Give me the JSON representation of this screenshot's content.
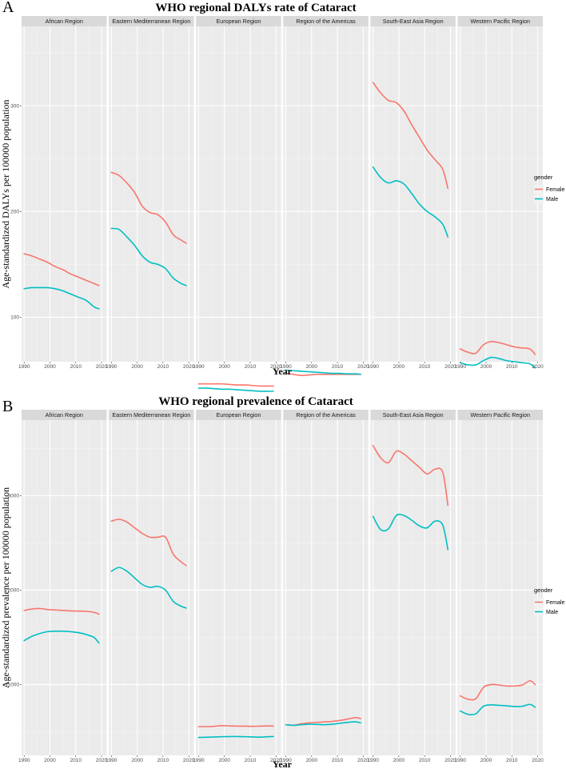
{
  "chart_data": [
    {
      "type": "line",
      "panel_label": "A",
      "title": "WHO regional DALYs rate of Cataract",
      "xlabel": "Year",
      "ylabel": "Age-standardized DALYs per 100000 population",
      "xlim": [
        1989,
        2022
      ],
      "ylim": [
        58,
        375
      ],
      "x_ticks": [
        1990,
        2000,
        2010,
        2020
      ],
      "y_ticks": [
        100,
        200,
        300
      ],
      "legend": {
        "title": "gender",
        "entries": [
          "Female",
          "Male"
        ],
        "colors": [
          "#F8766D",
          "#00BFC4"
        ]
      },
      "years": [
        1990,
        1993,
        1996,
        1999,
        2002,
        2005,
        2008,
        2011,
        2014,
        2017,
        2019
      ],
      "facets": [
        {
          "name": "African Region",
          "series": [
            {
              "name": "Female",
              "values": [
                160,
                158,
                155,
                152,
                148,
                145,
                141,
                138,
                135,
                132,
                130
              ]
            },
            {
              "name": "Male",
              "values": [
                127,
                128,
                128,
                128,
                127,
                125,
                122,
                119,
                116,
                110,
                108
              ]
            }
          ]
        },
        {
          "name": "Eastern Mediterranean Region",
          "series": [
            {
              "name": "Female",
              "values": [
                237,
                234,
                227,
                218,
                205,
                199,
                197,
                190,
                178,
                173,
                170
              ]
            },
            {
              "name": "Male",
              "values": [
                184,
                183,
                176,
                168,
                158,
                152,
                150,
                146,
                137,
                132,
                130
              ]
            }
          ]
        },
        {
          "name": "European Region",
          "series": [
            {
              "name": "Female",
              "values": [
                37,
                37,
                37,
                37,
                36.5,
                36,
                36,
                35.5,
                35,
                35,
                35
              ]
            },
            {
              "name": "Male",
              "values": [
                33,
                33,
                32.5,
                32,
                32,
                31.5,
                31,
                30.5,
                30,
                30,
                30
              ]
            }
          ]
        },
        {
          "name": "Region of the Americas",
          "series": [
            {
              "name": "Female",
              "values": [
                47,
                46,
                45,
                45.5,
                46,
                46,
                46,
                46,
                46,
                46,
                46
              ]
            },
            {
              "name": "Male",
              "values": [
                50,
                49.5,
                49,
                48.5,
                48,
                47.5,
                47,
                47,
                46.5,
                46.5,
                46
              ]
            }
          ]
        },
        {
          "name": "South-East Asia Region",
          "series": [
            {
              "name": "Female",
              "values": [
                322,
                312,
                305,
                303,
                295,
                282,
                270,
                258,
                249,
                240,
                222
              ]
            },
            {
              "name": "Male",
              "values": [
                242,
                232,
                227,
                229,
                226,
                217,
                207,
                200,
                195,
                188,
                176
              ]
            }
          ]
        },
        {
          "name": "Western Pacific Region",
          "series": [
            {
              "name": "Female",
              "values": [
                70,
                67,
                66,
                74,
                77,
                76,
                74,
                72,
                71,
                70,
                65
              ]
            },
            {
              "name": "Male",
              "values": [
                57,
                55,
                55,
                59,
                62,
                61,
                59,
                58,
                57,
                56,
                52
              ]
            }
          ]
        }
      ]
    },
    {
      "type": "line",
      "panel_label": "B",
      "title": "WHO regional prevalence of Cataract",
      "xlabel": "Year",
      "ylabel": "Age-standardized prevalence per 100000 population",
      "xlim": [
        1989,
        2022
      ],
      "ylim": [
        250,
        3800
      ],
      "x_ticks": [
        1990,
        2000,
        2010,
        2020
      ],
      "y_ticks": [
        1000,
        2000,
        3000
      ],
      "legend": {
        "title": "gender",
        "entries": [
          "Female",
          "Male"
        ],
        "colors": [
          "#F8766D",
          "#00BFC4"
        ]
      },
      "years": [
        1990,
        1993,
        1996,
        1999,
        2002,
        2005,
        2008,
        2011,
        2014,
        2017,
        2019
      ],
      "facets": [
        {
          "name": "African Region",
          "series": [
            {
              "name": "Female",
              "values": [
                1785,
                1800,
                1805,
                1795,
                1790,
                1785,
                1780,
                1778,
                1775,
                1765,
                1745
              ]
            },
            {
              "name": "Male",
              "values": [
                1465,
                1510,
                1540,
                1560,
                1565,
                1565,
                1560,
                1550,
                1530,
                1500,
                1440
              ]
            }
          ]
        },
        {
          "name": "Eastern Mediterranean Region",
          "series": [
            {
              "name": "Female",
              "values": [
                2730,
                2750,
                2720,
                2660,
                2600,
                2560,
                2560,
                2560,
                2380,
                2300,
                2260
              ]
            },
            {
              "name": "Male",
              "values": [
                2200,
                2240,
                2200,
                2130,
                2060,
                2030,
                2040,
                2000,
                1880,
                1830,
                1810
              ]
            }
          ]
        },
        {
          "name": "European Region",
          "series": [
            {
              "name": "Female",
              "values": [
                555,
                555,
                558,
                565,
                562,
                560,
                560,
                558,
                560,
                562,
                560
              ]
            },
            {
              "name": "Male",
              "values": [
                440,
                442,
                445,
                448,
                450,
                450,
                448,
                445,
                443,
                448,
                450
              ]
            }
          ]
        },
        {
          "name": "Region of the Americas",
          "series": [
            {
              "name": "Female",
              "values": [
                575,
                570,
                585,
                595,
                600,
                605,
                610,
                620,
                635,
                650,
                640
              ]
            },
            {
              "name": "Male",
              "values": [
                575,
                568,
                575,
                580,
                578,
                575,
                580,
                590,
                600,
                605,
                595
              ]
            }
          ]
        },
        {
          "name": "South-East Asia Region",
          "series": [
            {
              "name": "Female",
              "values": [
                3530,
                3400,
                3350,
                3470,
                3440,
                3370,
                3300,
                3230,
                3280,
                3250,
                2900
              ]
            },
            {
              "name": "Male",
              "values": [
                2780,
                2640,
                2650,
                2790,
                2790,
                2740,
                2680,
                2660,
                2730,
                2690,
                2430
              ]
            }
          ]
        },
        {
          "name": "Western Pacific Region",
          "series": [
            {
              "name": "Female",
              "values": [
                880,
                845,
                850,
                970,
                1000,
                995,
                985,
                985,
                995,
                1040,
                1000
              ]
            },
            {
              "name": "Male",
              "values": [
                720,
                685,
                690,
                770,
                785,
                780,
                775,
                768,
                770,
                790,
                760
              ]
            }
          ]
        }
      ]
    }
  ]
}
